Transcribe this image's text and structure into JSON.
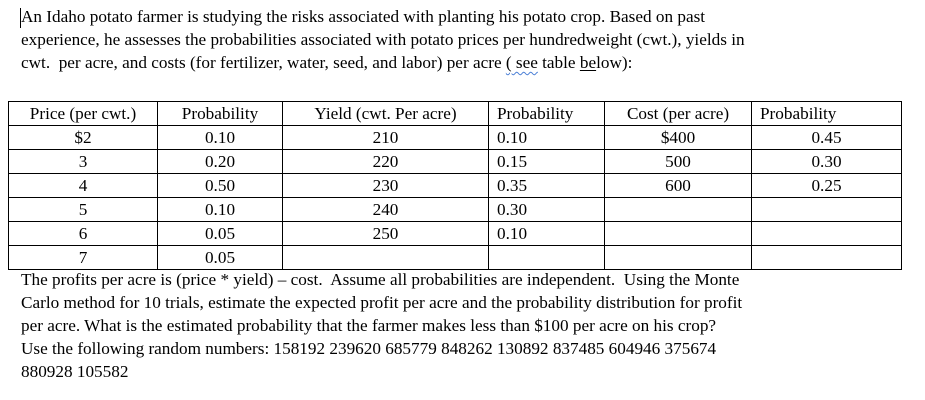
{
  "intro": {
    "lines": [
      "An Idaho potato farmer is studying the risks associated with planting his potato crop. Based on past",
      "experience, he assesses the probabilities associated with potato prices per hundredweight (cwt.), yields in",
      "cwt.  per acre, and costs (for fertilizer, water, seed, and labor) per acre "
    ],
    "line3_paren_open": "(",
    "line3_see": " see",
    "line3_table": " table ",
    "line3_be": "be",
    "line3_low": "low):"
  },
  "table": {
    "headers": [
      "Price (per cwt.)",
      "Probability",
      "Yield (cwt. Per acre)",
      "Probability",
      "Cost (per acre)",
      "Probability"
    ],
    "rows": [
      [
        "$2",
        "0.10",
        "210",
        "0.10",
        "$400",
        "0.45"
      ],
      [
        "3",
        "0.20",
        "220",
        "0.15",
        "500",
        "0.30"
      ],
      [
        "4",
        "0.50",
        "230",
        "0.35",
        "600",
        "0.25"
      ],
      [
        "5",
        "0.10",
        "240",
        "0.30",
        "",
        ""
      ],
      [
        "6",
        "0.05",
        "250",
        "0.10",
        "",
        ""
      ],
      [
        "7",
        "0.05",
        "",
        "",
        "",
        ""
      ]
    ]
  },
  "question": {
    "lines": [
      "The profits per acre is (price * yield) – cost.  Assume all probabilities are independent.  Using the Monte",
      "Carlo method for 10 trials, estimate the expected profit per acre and the probability distribution for profit",
      "per acre. What is the estimated probability that the farmer makes less than $100 per acre on his crop?",
      "Use the following random numbers: 158192 239620 685779 848262 130892 837485 604946 375674",
      "880928 105582"
    ]
  }
}
